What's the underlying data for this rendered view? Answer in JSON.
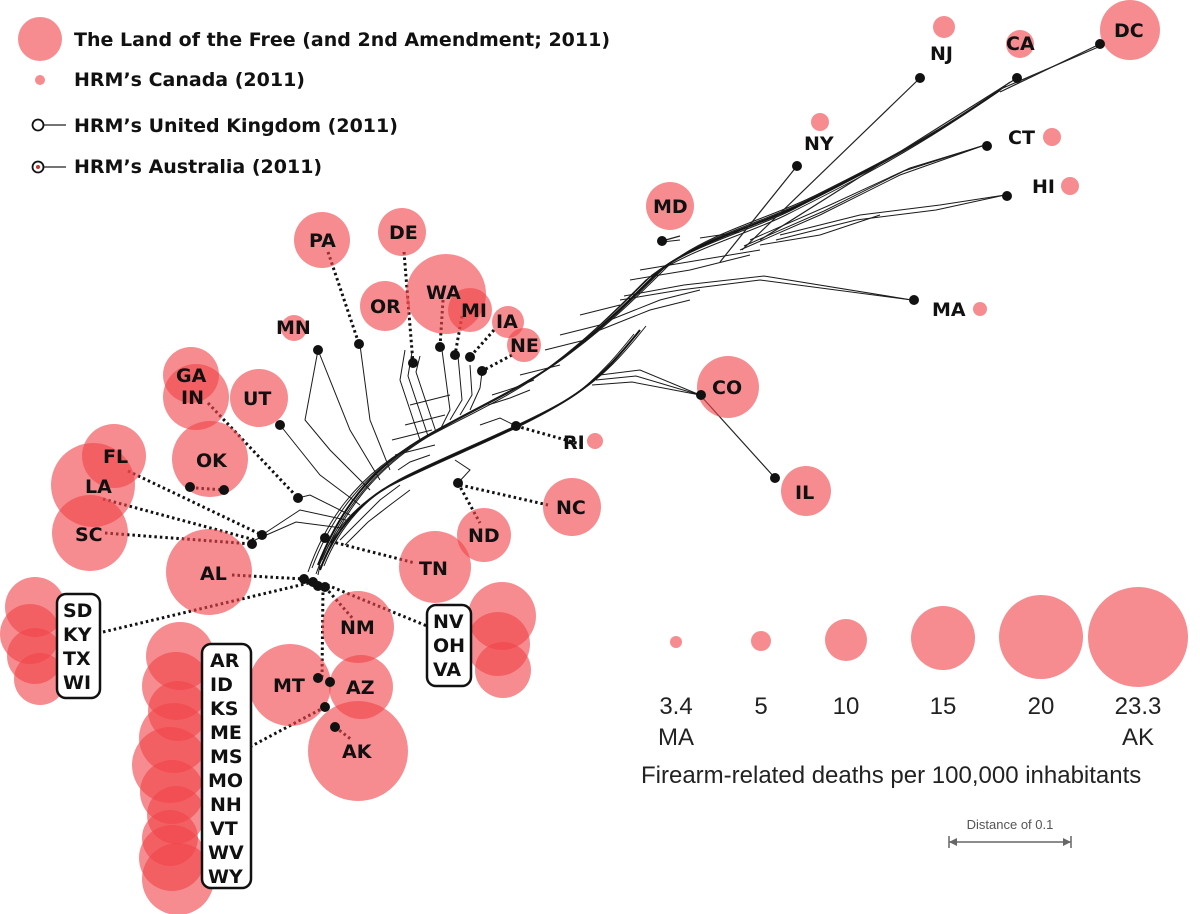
{
  "legend": {
    "items": [
      {
        "label": "The Land of the Free (and 2nd Amendment; 2011)",
        "marker": "large-bubble"
      },
      {
        "label": "HRM’s Canada (2011)",
        "marker": "small-bubble"
      },
      {
        "label": "HRM’s United Kingdom (2011)",
        "marker": "open-circle"
      },
      {
        "label": "HRM’s Australia (2011)",
        "marker": "dotted-circle"
      }
    ]
  },
  "colors": {
    "bubble": "#f0464a",
    "node": "#111111"
  },
  "states": {
    "DC": "DC",
    "NJ": "NJ",
    "CA": "CA",
    "NY": "NY",
    "CT": "CT",
    "HI": "HI",
    "MD": "MD",
    "MA": "MA",
    "PA": "PA",
    "DE": "DE",
    "MN": "MN",
    "OR": "OR",
    "WA": "WA",
    "MI": "MI",
    "IA": "IA",
    "NE": "NE",
    "GA": "GA",
    "IN": "IN",
    "UT": "UT",
    "CO": "CO",
    "RI": "RI",
    "OK": "OK",
    "FL": "FL",
    "LA": "LA",
    "IL": "IL",
    "NC": "NC",
    "SC": "SC",
    "ND": "ND",
    "TN": "TN",
    "AL": "AL",
    "NM": "NM",
    "MT": "MT",
    "AZ": "AZ",
    "AK": "AK"
  },
  "groups": {
    "west": [
      "SD",
      "KY",
      "TX",
      "WI"
    ],
    "east": [
      "NV",
      "OH",
      "VA"
    ],
    "south": [
      "AR",
      "ID",
      "KS",
      "ME",
      "MS",
      "MO",
      "NH",
      "VT",
      "WV",
      "WY"
    ]
  },
  "size_legend": {
    "values": [
      "3.4",
      "5",
      "10",
      "15",
      "20",
      "23.3"
    ],
    "min_label": "MA",
    "max_label": "AK",
    "title": "Firearm-related deaths per 100,000 inhabitants"
  },
  "scale_bar": {
    "label": "Distance of 0.1"
  }
}
